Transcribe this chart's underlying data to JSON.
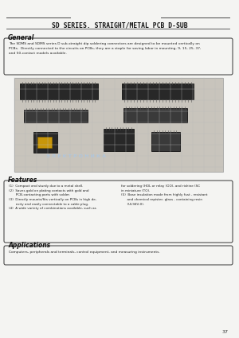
{
  "bg_color": "#e8e8e8",
  "page_bg": "#f4f4f2",
  "title": "SD SERIES. STRAIGHT/METAL PCB D-SUB",
  "page_number": "37",
  "general_heading": "General",
  "general_text": "The SDMS and SDMS series D sub-straight dip soldering connectors are designed to be mounted vertically on\nPCBs.  Directly connected to the circuits on PCBs, they are a staple for saving labor in mounting. 9, 15, 25, 37,\nand 50-contact models available.",
  "features_heading": "Features",
  "features_text_left": "(1)  Compact and sturdy due to a metal shell.\n(2)  Saves gold on plating contacts with gold and\n       PCB-contacting parts with solder.\n(3)  Directly mounts/fits vertically on PCBs in high de-\n       nsity and easily connectable to a cable plug.\n(4)  A wide variety of combinations available, such as",
  "features_text_right": "for soldering (HOL or relay (OO), and rishine (SC\nin miniature (TO).\n(5)  Base insulation made from highly fust - resistant\n      and chemical repister, glass - containing resin\n      (UL94V-0).",
  "applications_heading": "Applications",
  "applications_text": "Computers, peripherals and terminals, control equipment, and measuring instruments.",
  "watermark_color": "#aac8e8",
  "grid_color": "#bbbbbb",
  "connector_dark": "#282828",
  "connector_mid": "#3a3a3a",
  "gold_color": "#c8960a"
}
